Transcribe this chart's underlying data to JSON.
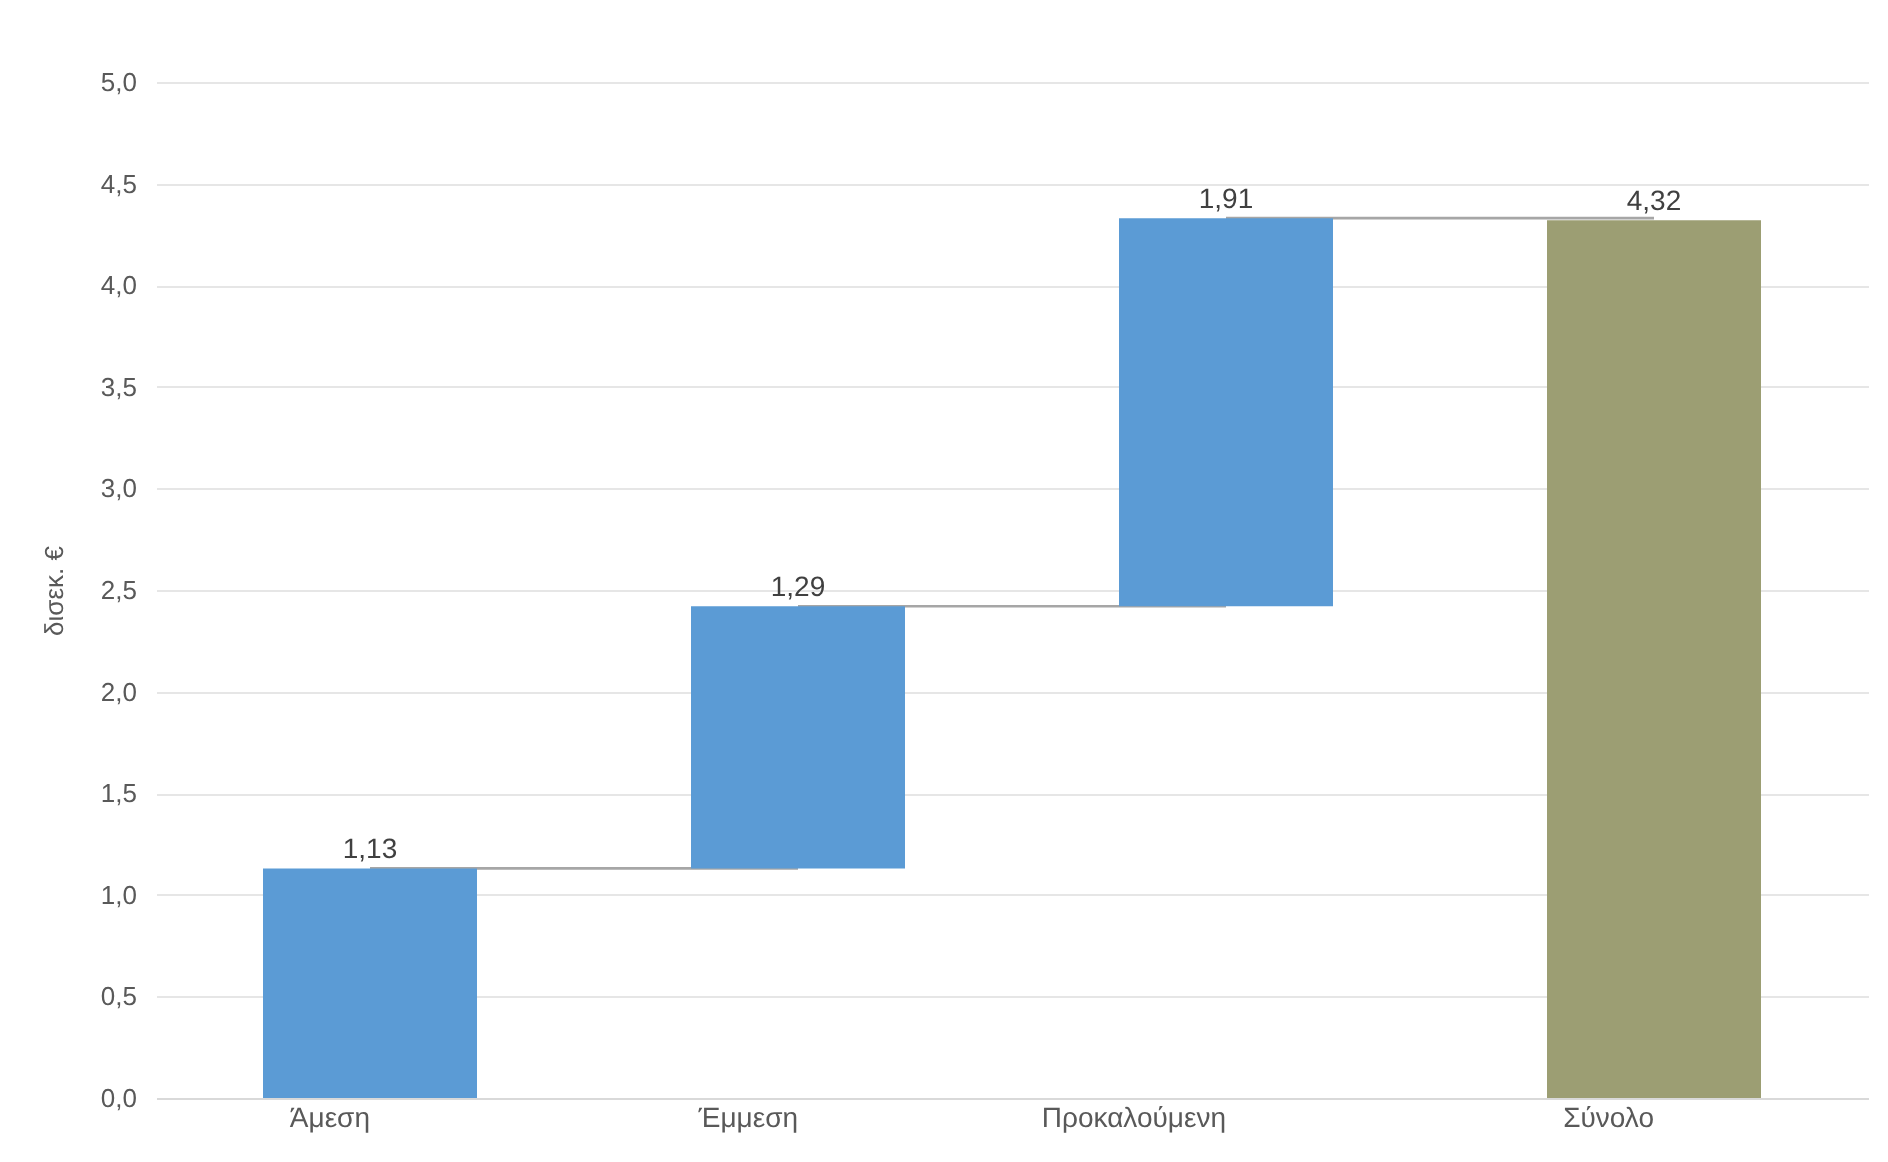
{
  "chart_data": {
    "type": "bar",
    "ylabel": "δισεκ. €",
    "categories": [
      "Άμεση",
      "Έμμεση",
      "Προκαλούμενη",
      "Σύνολο"
    ],
    "values": [
      1.13,
      1.29,
      1.91,
      4.32
    ],
    "base": [
      0,
      1.13,
      2.42,
      0
    ],
    "colors": [
      "#5b9bd5",
      "#5b9bd5",
      "#5b9bd5",
      "#9c9e73"
    ],
    "value_labels": [
      "1,13",
      "1,29",
      "1,91",
      "4,32"
    ],
    "ylim": [
      0,
      5
    ],
    "yticks": [
      {
        "value": 0,
        "label": "0,0"
      },
      {
        "value": 0.5,
        "label": "0,5"
      },
      {
        "value": 1,
        "label": "1,0"
      },
      {
        "value": 1.5,
        "label": "1,5"
      },
      {
        "value": 2,
        "label": "2,0"
      },
      {
        "value": 2.5,
        "label": "2,5"
      },
      {
        "value": 3,
        "label": "3,0"
      },
      {
        "value": 3.5,
        "label": "3,5"
      },
      {
        "value": 4,
        "label": "4,0"
      },
      {
        "value": 4.5,
        "label": "4,5"
      },
      {
        "value": 5,
        "label": "5,0"
      }
    ],
    "grid": "y"
  }
}
